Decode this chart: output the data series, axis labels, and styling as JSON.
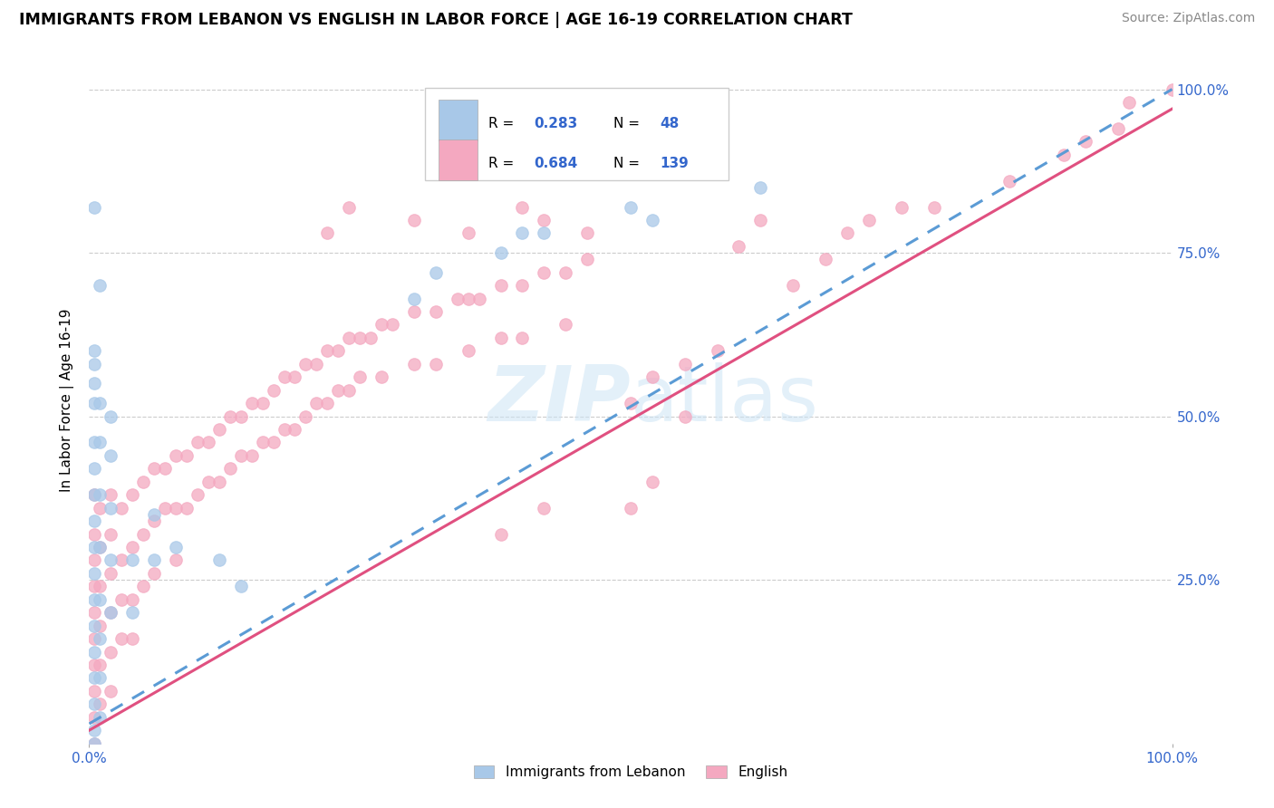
{
  "title": "IMMIGRANTS FROM LEBANON VS ENGLISH IN LABOR FORCE | AGE 16-19 CORRELATION CHART",
  "source": "Source: ZipAtlas.com",
  "ylabel": "In Labor Force | Age 16-19",
  "color_blue": "#a8c8e8",
  "color_pink": "#f4a8c0",
  "color_blue_line": "#5b9bd5",
  "color_pink_line": "#e05080",
  "watermark": "ZIPatlas",
  "legend_r1": "R = 0.283",
  "legend_n1": "N =  48",
  "legend_r2": "R = 0.684",
  "legend_n2": "N = 139",
  "blue_line": [
    [
      0.0,
      0.03
    ],
    [
      1.0,
      1.0
    ]
  ],
  "pink_line": [
    [
      0.0,
      0.02
    ],
    [
      1.0,
      0.97
    ]
  ]
}
